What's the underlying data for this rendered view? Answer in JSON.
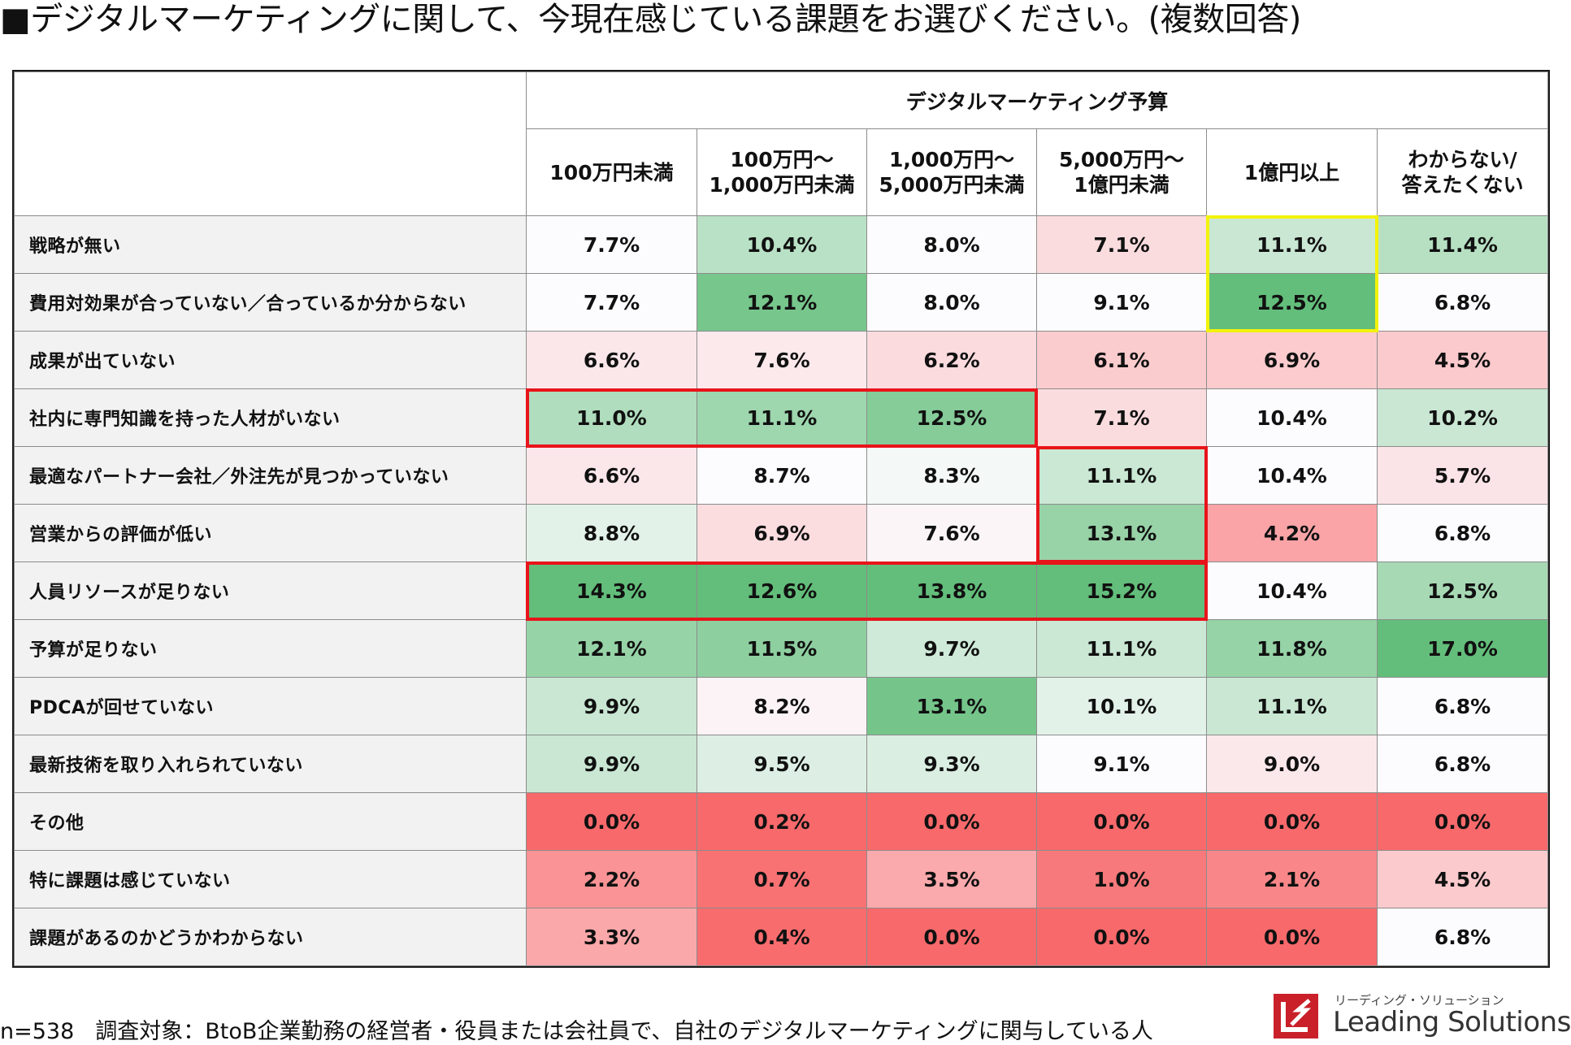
{
  "title": "■デジタルマーケティングに関して、今現在感じている課題をお選びください。(複数回答)",
  "chart_data": {
    "type": "table",
    "group_header": "デジタルマーケティング予算",
    "columns": [
      {
        "line1": "100万円未満",
        "line2": ""
      },
      {
        "line1": "100万円～",
        "line2": "1,000万円未満"
      },
      {
        "line1": "1,000万円～",
        "line2": "5,000万円未満"
      },
      {
        "line1": "5,000万円～",
        "line2": "1億円未満"
      },
      {
        "line1": "1億円以上",
        "line2": ""
      },
      {
        "line1": "わからない/",
        "line2": "答えたくない"
      }
    ],
    "rows": [
      {
        "label": "戦略が無い",
        "values": [
          "7.7%",
          "10.4%",
          "8.0%",
          "7.1%",
          "11.1%",
          "11.4%"
        ]
      },
      {
        "label": "費用対効果が合っていない／合っているか分からない",
        "values": [
          "7.7%",
          "12.1%",
          "8.0%",
          "9.1%",
          "12.5%",
          "6.8%"
        ]
      },
      {
        "label": "成果が出ていない",
        "values": [
          "6.6%",
          "7.6%",
          "6.2%",
          "6.1%",
          "6.9%",
          "4.5%"
        ]
      },
      {
        "label": "社内に専門知識を持った人材がいない",
        "values": [
          "11.0%",
          "11.1%",
          "12.5%",
          "7.1%",
          "10.4%",
          "10.2%"
        ]
      },
      {
        "label": "最適なパートナー会社／外注先が見つかっていない",
        "values": [
          "6.6%",
          "8.7%",
          "8.3%",
          "11.1%",
          "10.4%",
          "5.7%"
        ]
      },
      {
        "label": "営業からの評価が低い",
        "values": [
          "8.8%",
          "6.9%",
          "7.6%",
          "13.1%",
          "4.2%",
          "6.8%"
        ]
      },
      {
        "label": "人員リソースが足りない",
        "values": [
          "14.3%",
          "12.6%",
          "13.8%",
          "15.2%",
          "10.4%",
          "12.5%"
        ]
      },
      {
        "label": "予算が足りない",
        "values": [
          "12.1%",
          "11.5%",
          "9.7%",
          "11.1%",
          "11.8%",
          "17.0%"
        ]
      },
      {
        "label": "PDCAが回せていない",
        "values": [
          "9.9%",
          "8.2%",
          "13.1%",
          "10.1%",
          "11.1%",
          "6.8%"
        ]
      },
      {
        "label": "最新技術を取り入れられていない",
        "values": [
          "9.9%",
          "9.5%",
          "9.3%",
          "9.1%",
          "9.0%",
          "6.8%"
        ]
      },
      {
        "label": "その他",
        "values": [
          "0.0%",
          "0.2%",
          "0.0%",
          "0.0%",
          "0.0%",
          "0.0%"
        ]
      },
      {
        "label": "特に課題は感じていない",
        "values": [
          "2.2%",
          "0.7%",
          "3.5%",
          "1.0%",
          "2.1%",
          "4.5%"
        ]
      },
      {
        "label": "課題があるのかどうかわからない",
        "values": [
          "3.3%",
          "0.4%",
          "0.0%",
          "0.0%",
          "0.0%",
          "6.8%"
        ]
      }
    ],
    "highlights": [
      {
        "color": "red",
        "rows": [
          3,
          3
        ],
        "cols": [
          0,
          2
        ]
      },
      {
        "color": "red",
        "rows": [
          4,
          5
        ],
        "cols": [
          3,
          3
        ]
      },
      {
        "color": "red",
        "rows": [
          6,
          6
        ],
        "cols": [
          0,
          3
        ]
      },
      {
        "color": "yellow",
        "rows": [
          0,
          1
        ],
        "cols": [
          4,
          4
        ]
      }
    ],
    "color_scale": {
      "low": "#f8696b",
      "mid": "#fcfcff",
      "high": "#63be7b"
    }
  },
  "footer": {
    "n": "n=538",
    "target": "調査対象：BtoB企業勤務の経営者・役員または会社員で、自社のデジタルマーケティングに関与している人"
  },
  "logo": {
    "kana": "リーディング・ソリューション",
    "name": "Leading Solutions"
  }
}
